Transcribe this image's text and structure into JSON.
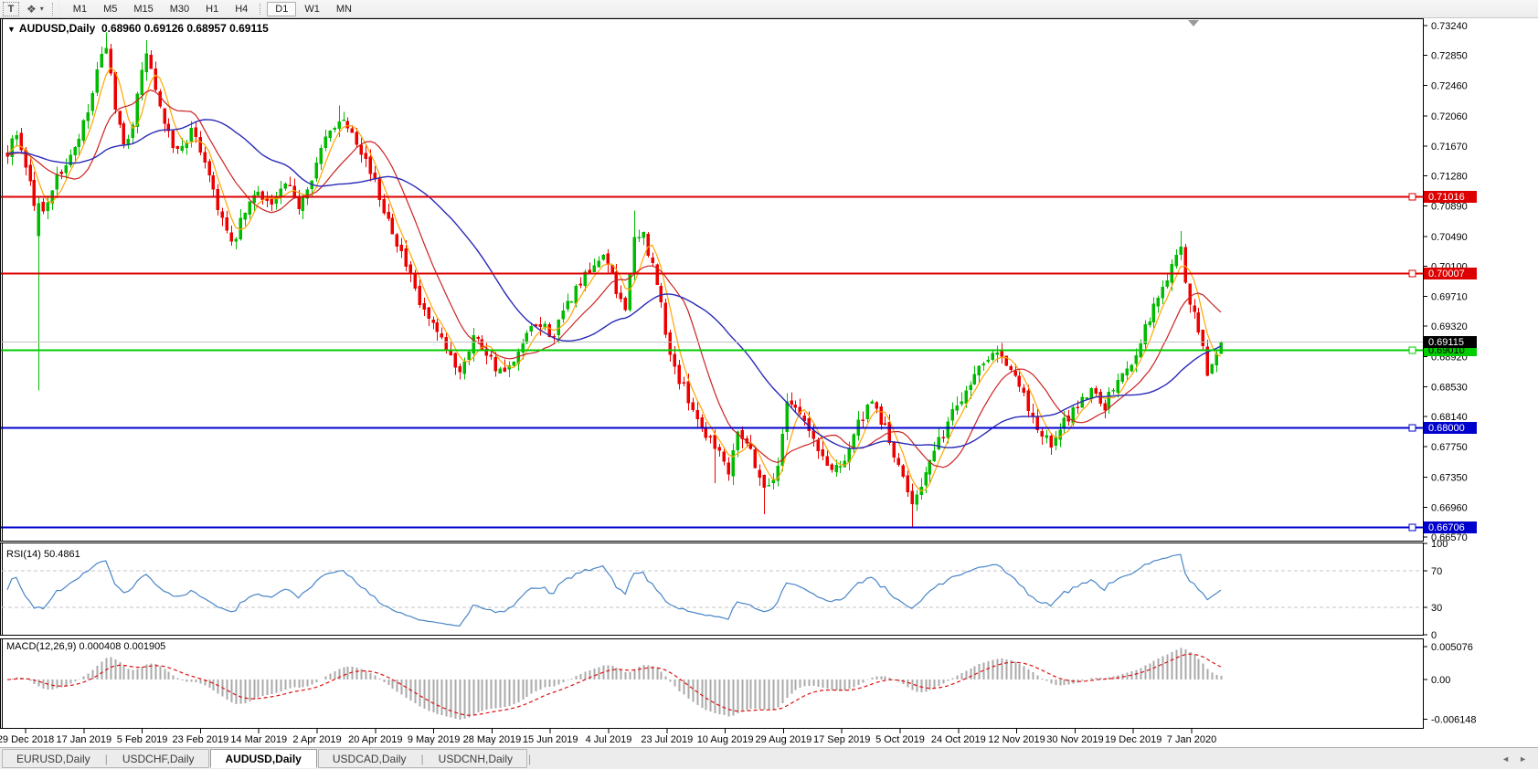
{
  "toolbar": {
    "text_tool_label": "T",
    "tools_icon": "❖",
    "caret": "▾",
    "timeframes": [
      "M1",
      "M5",
      "M15",
      "M30",
      "H1",
      "H4",
      "D1",
      "W1",
      "MN"
    ],
    "active_timeframe": "D1"
  },
  "chart": {
    "collapse_caret": "▼",
    "title_symbol": "AUDUSD,Daily",
    "ohlc": "0.68960 0.69126 0.68957 0.69115",
    "price_axis": {
      "ticks": [
        "0.73240",
        "0.72850",
        "0.72460",
        "0.72060",
        "0.71670",
        "0.71280",
        "0.70890",
        "0.70490",
        "0.70100",
        "0.69710",
        "0.69320",
        "0.68920",
        "0.68530",
        "0.68140",
        "0.67750",
        "0.67350",
        "0.66960",
        "0.66570"
      ]
    },
    "hlines": [
      {
        "price": 0.71016,
        "label": "0.71016",
        "color": "#dd0000",
        "text": "#ffffff"
      },
      {
        "price": 0.70007,
        "label": "0.70007",
        "color": "#dd0000",
        "text": "#ffffff"
      },
      {
        "price": 0.6901,
        "label": "0.69010",
        "color": "#00cc00",
        "text": "#000000"
      },
      {
        "price": 0.68,
        "label": "0.68000",
        "color": "#0000cc",
        "text": "#ffffff"
      },
      {
        "price": 0.66706,
        "label": "0.66706",
        "color": "#0000cc",
        "text": "#ffffff"
      }
    ],
    "current_price": {
      "value": 0.69115,
      "label": "0.69115"
    },
    "dates": [
      "29 Dec 2018",
      "17 Jan 2019",
      "5 Feb 2019",
      "23 Feb 2019",
      "14 Mar 2019",
      "2 Apr 2019",
      "20 Apr 2019",
      "9 May 2019",
      "28 May 2019",
      "15 Jun 2019",
      "4 Jul 2019",
      "23 Jul 2019",
      "10 Aug 2019",
      "29 Aug 2019",
      "17 Sep 2019",
      "5 Oct 2019",
      "24 Oct 2019",
      "12 Nov 2019",
      "30 Nov 2019",
      "19 Dec 2019",
      "7 Jan 2020"
    ]
  },
  "rsi": {
    "label": "RSI(14)",
    "value": "50.4861",
    "axis_ticks": [
      "100",
      "70",
      "30",
      "0"
    ],
    "levels": [
      70,
      30
    ]
  },
  "macd": {
    "label": "MACD(12,26,9)",
    "values": "0.000408 0.001905",
    "axis_ticks": [
      "0.005076",
      "0.00",
      "-0.006148"
    ]
  },
  "tabs": {
    "items": [
      "EURUSD,Daily",
      "USDCHF,Daily",
      "AUDUSD,Daily",
      "USDCAD,Daily",
      "USDCNH,Daily"
    ],
    "active": "AUDUSD,Daily",
    "scroll_left": "◄",
    "scroll_right": "►"
  },
  "colors": {
    "up": "#00bb00",
    "down": "#ee0000",
    "ma_fast": "#ffa500",
    "ma_mid": "#cc2222",
    "ma_slow": "#2a2ab8",
    "rsi_line": "#4a86c8",
    "rsi_level": "#c6c6c6",
    "macd_hist": "#aaaaaa",
    "macd_signal": "#dd1111",
    "current_line": "#c0c0c0",
    "current_tag_bg": "#000000",
    "current_tag_text": "#ffffff"
  },
  "chart_data": {
    "type": "candlestick",
    "symbol": "AUDUSD",
    "timeframe": "Daily",
    "title": "AUDUSD,Daily 0.68960 0.69126 0.68957 0.69115",
    "ylim": [
      0.6652,
      0.7324
    ],
    "bars_total": 272,
    "x_labels": [
      "29 Dec 2018",
      "17 Jan 2019",
      "5 Feb 2019",
      "23 Feb 2019",
      "14 Mar 2019",
      "2 Apr 2019",
      "20 Apr 2019",
      "9 May 2019",
      "28 May 2019",
      "15 Jun 2019",
      "4 Jul 2019",
      "23 Jul 2019",
      "10 Aug 2019",
      "29 Aug 2019",
      "17 Sep 2019",
      "5 Oct 2019",
      "24 Oct 2019",
      "12 Nov 2019",
      "30 Nov 2019",
      "19 Dec 2019",
      "7 Jan 2020"
    ],
    "last_bar_ohlc": {
      "open": 0.6896,
      "high": 0.69126,
      "low": 0.68957,
      "close": 0.69115
    },
    "price_path_anchors": [
      [
        0,
        0.716
      ],
      [
        2,
        0.7185
      ],
      [
        5,
        0.712
      ],
      [
        7,
        0.706
      ],
      [
        9,
        0.71
      ],
      [
        12,
        0.7135
      ],
      [
        15,
        0.716
      ],
      [
        18,
        0.721
      ],
      [
        20,
        0.726
      ],
      [
        22,
        0.73
      ],
      [
        24,
        0.721
      ],
      [
        26,
        0.7165
      ],
      [
        28,
        0.72
      ],
      [
        31,
        0.729
      ],
      [
        33,
        0.724
      ],
      [
        35,
        0.719
      ],
      [
        38,
        0.716
      ],
      [
        41,
        0.7185
      ],
      [
        44,
        0.715
      ],
      [
        47,
        0.709
      ],
      [
        50,
        0.7035
      ],
      [
        53,
        0.708
      ],
      [
        56,
        0.711
      ],
      [
        59,
        0.709
      ],
      [
        62,
        0.7115
      ],
      [
        65,
        0.709
      ],
      [
        68,
        0.713
      ],
      [
        71,
        0.7175
      ],
      [
        74,
        0.7205
      ],
      [
        77,
        0.719
      ],
      [
        80,
        0.715
      ],
      [
        83,
        0.71
      ],
      [
        86,
        0.706
      ],
      [
        89,
        0.701
      ],
      [
        92,
        0.696
      ],
      [
        95,
        0.693
      ],
      [
        98,
        0.69
      ],
      [
        101,
        0.6875
      ],
      [
        104,
        0.692
      ],
      [
        107,
        0.69
      ],
      [
        110,
        0.687
      ],
      [
        113,
        0.688
      ],
      [
        116,
        0.692
      ],
      [
        119,
        0.6935
      ],
      [
        122,
        0.692
      ],
      [
        125,
        0.696
      ],
      [
        128,
        0.699
      ],
      [
        131,
        0.7005
      ],
      [
        133,
        0.703
      ],
      [
        136,
        0.6975
      ],
      [
        138,
        0.696
      ],
      [
        140,
        0.704
      ],
      [
        142,
        0.705
      ],
      [
        144,
        0.701
      ],
      [
        146,
        0.696
      ],
      [
        147,
        0.692
      ],
      [
        150,
        0.686
      ],
      [
        152,
        0.684
      ],
      [
        155,
        0.68
      ],
      [
        158,
        0.678
      ],
      [
        161,
        0.6745
      ],
      [
        163,
        0.68
      ],
      [
        166,
        0.677
      ],
      [
        169,
        0.672
      ],
      [
        172,
        0.6745
      ],
      [
        174,
        0.684
      ],
      [
        177,
        0.682
      ],
      [
        181,
        0.677
      ],
      [
        184,
        0.6745
      ],
      [
        187,
        0.676
      ],
      [
        190,
        0.6805
      ],
      [
        193,
        0.683
      ],
      [
        196,
        0.68
      ],
      [
        199,
        0.6745
      ],
      [
        202,
        0.6705
      ],
      [
        205,
        0.674
      ],
      [
        208,
        0.678
      ],
      [
        211,
        0.682
      ],
      [
        214,
        0.685
      ],
      [
        218,
        0.689
      ],
      [
        221,
        0.6905
      ],
      [
        224,
        0.6875
      ],
      [
        227,
        0.684
      ],
      [
        230,
        0.68
      ],
      [
        233,
        0.6775
      ],
      [
        236,
        0.6805
      ],
      [
        239,
        0.683
      ],
      [
        242,
        0.685
      ],
      [
        245,
        0.683
      ],
      [
        248,
        0.686
      ],
      [
        251,
        0.6885
      ],
      [
        254,
        0.693
      ],
      [
        257,
        0.697
      ],
      [
        260,
        0.701
      ],
      [
        262,
        0.7032
      ],
      [
        264,
        0.696
      ],
      [
        266,
        0.693
      ],
      [
        268,
        0.687
      ],
      [
        270,
        0.6895
      ],
      [
        271,
        0.69115
      ]
    ],
    "special_bars": {
      "7": {
        "open": 0.705,
        "close": 0.7092,
        "low": 0.6848,
        "high": 0.71
      },
      "22": {
        "high": 0.7315
      },
      "31": {
        "high": 0.7305
      },
      "74": {
        "high": 0.722
      },
      "140": {
        "high": 0.7083
      },
      "158": {
        "low": 0.6727
      },
      "169": {
        "low": 0.6687
      },
      "202": {
        "low": 0.667
      },
      "262": {
        "high": 0.7056
      },
      "271": {
        "open": 0.6896,
        "high": 0.69126,
        "low": 0.68957,
        "close": 0.69115
      }
    },
    "overlays": [
      {
        "name": "ma-fast",
        "type": "sma",
        "period": 5,
        "color": "#ffa500"
      },
      {
        "name": "ma-medium",
        "type": "sma",
        "period": 13,
        "color": "#cc2222"
      },
      {
        "name": "ma-slow",
        "type": "sma",
        "period": 34,
        "color": "#2a2ab8"
      }
    ],
    "horizontal_levels": [
      0.71016,
      0.70007,
      0.69115,
      0.6901,
      0.68,
      0.66706
    ],
    "indicators": [
      {
        "name": "RSI",
        "period": 14,
        "current": 50.4861,
        "levels": [
          30,
          70
        ],
        "range": [
          0,
          100
        ]
      },
      {
        "name": "MACD",
        "params": [
          12,
          26,
          9
        ],
        "current": [
          0.000408,
          0.001905
        ],
        "axis_range": [
          -0.006148,
          0.005076
        ]
      }
    ]
  }
}
